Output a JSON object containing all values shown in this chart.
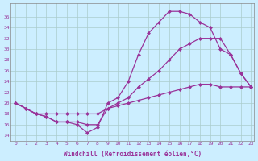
{
  "xlabel": "Windchill (Refroidissement éolien,°C)",
  "bg_color": "#cceeff",
  "line_color": "#993399",
  "xlim": [
    -0.5,
    23.3
  ],
  "ylim": [
    13,
    38.5
  ],
  "yticks": [
    14,
    16,
    18,
    20,
    22,
    24,
    26,
    28,
    30,
    32,
    34,
    36
  ],
  "xticks": [
    0,
    1,
    2,
    3,
    4,
    5,
    6,
    7,
    8,
    9,
    10,
    11,
    12,
    13,
    14,
    15,
    16,
    17,
    18,
    19,
    20,
    21,
    22,
    23
  ],
  "series1_x": [
    0,
    1,
    2,
    3,
    4,
    5,
    6,
    7,
    8,
    9,
    10,
    11,
    12,
    13,
    14,
    15,
    16,
    17,
    18,
    19,
    20,
    21,
    22,
    23
  ],
  "series1_y": [
    20,
    19,
    18,
    17.5,
    16.5,
    16.5,
    16,
    14.5,
    15.5,
    20,
    21,
    24,
    29,
    33,
    35,
    37,
    37,
    36.5,
    35,
    34,
    30,
    29,
    25.5,
    23
  ],
  "series2_x": [
    0,
    1,
    2,
    3,
    4,
    5,
    6,
    7,
    8,
    9,
    10,
    11,
    12,
    13,
    14,
    15,
    16,
    17,
    18,
    19,
    20,
    21,
    22,
    23
  ],
  "series2_y": [
    20,
    19,
    18,
    17.5,
    16.5,
    16.5,
    16.5,
    16,
    16,
    19,
    20,
    21,
    23,
    24.5,
    26,
    28,
    30,
    31,
    32,
    32,
    32,
    29,
    25.5,
    23
  ],
  "series3_x": [
    0,
    1,
    2,
    3,
    4,
    5,
    6,
    7,
    8,
    9,
    10,
    11,
    12,
    13,
    14,
    15,
    16,
    17,
    18,
    19,
    20,
    21,
    22,
    23
  ],
  "series3_y": [
    20,
    19,
    18,
    18,
    18,
    18,
    18,
    18,
    18,
    19,
    19.5,
    20,
    20.5,
    21,
    21.5,
    22,
    22.5,
    23,
    23.5,
    23.5,
    23,
    23,
    23,
    23
  ]
}
